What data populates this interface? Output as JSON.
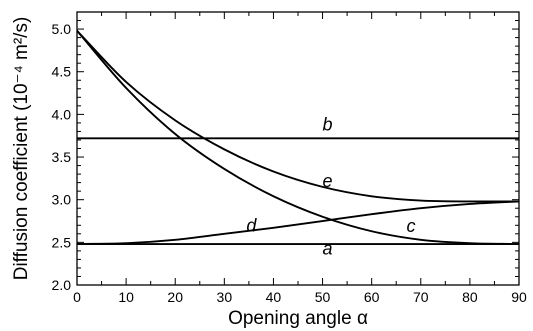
{
  "chart_data": {
    "type": "line",
    "xlabel": "Opening angle α",
    "ylabel": "Diffusion coefficient (10⁻⁴ m²/s)",
    "xlim": [
      0,
      90
    ],
    "ylim": [
      2.0,
      5.2
    ],
    "xticks": [
      0,
      10,
      20,
      30,
      40,
      50,
      60,
      70,
      80,
      90
    ],
    "yticks": [
      2.0,
      2.5,
      3.0,
      3.5,
      4.0,
      4.5,
      5.0
    ],
    "xtick_labels": [
      "0",
      "10",
      "20",
      "30",
      "40",
      "50",
      "60",
      "70",
      "80",
      "90"
    ],
    "ytick_labels": [
      "2.0",
      "2.5",
      "3.0",
      "3.5",
      "4.0",
      "4.5",
      "5.0"
    ],
    "grid": false,
    "legend": "none",
    "line_color": "#000000",
    "series": [
      {
        "label": "a",
        "label_at": [
          51,
          2.36
        ],
        "x": [
          0,
          90
        ],
        "y": [
          2.48,
          2.48
        ]
      },
      {
        "label": "b",
        "label_at": [
          51,
          3.81
        ],
        "x": [
          0,
          90
        ],
        "y": [
          3.72,
          3.72
        ]
      },
      {
        "label": "c",
        "label_at": [
          68,
          2.62
        ],
        "x": [
          0,
          10,
          20,
          30,
          40,
          50,
          60,
          70,
          80,
          90
        ],
        "y": [
          4.98,
          4.31,
          3.77,
          3.36,
          3.04,
          2.8,
          2.63,
          2.53,
          2.49,
          2.48
        ]
      },
      {
        "label": "d",
        "label_at": [
          35.5,
          2.63
        ],
        "x": [
          0,
          10,
          20,
          30,
          40,
          50,
          60,
          70,
          80,
          90
        ],
        "y": [
          2.48,
          2.49,
          2.53,
          2.6,
          2.67,
          2.75,
          2.83,
          2.9,
          2.95,
          2.98
        ]
      },
      {
        "label": "e",
        "label_at": [
          51,
          3.15
        ],
        "x": [
          0,
          10,
          20,
          30,
          40,
          50,
          60,
          70,
          80,
          90
        ],
        "y": [
          4.98,
          4.38,
          3.93,
          3.59,
          3.33,
          3.15,
          3.04,
          2.99,
          2.98,
          2.98
        ]
      }
    ]
  }
}
